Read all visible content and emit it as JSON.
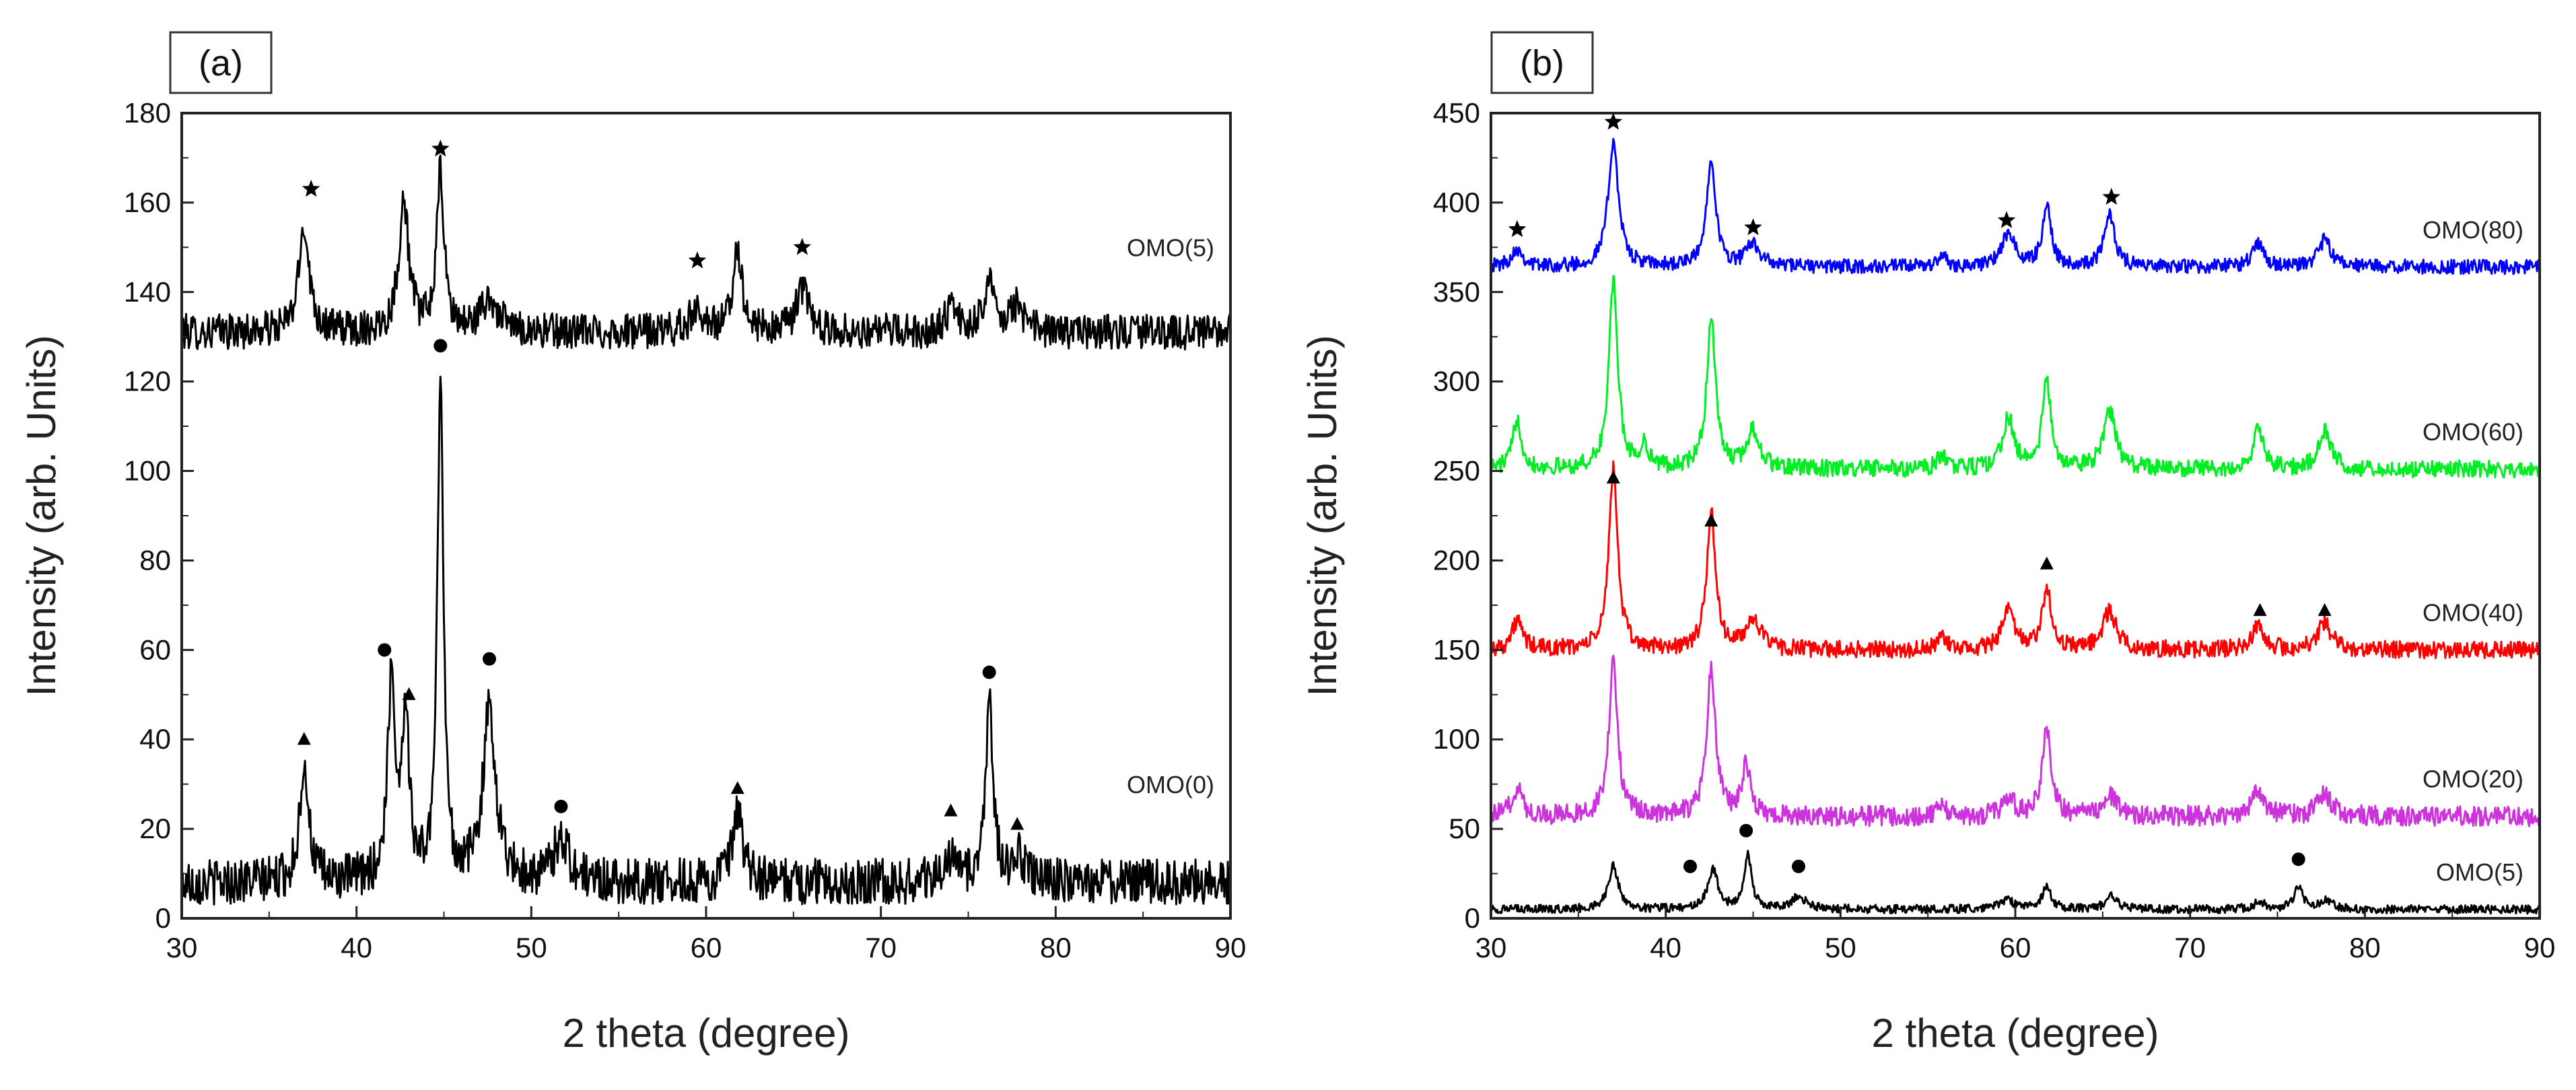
{
  "chart_data": [
    {
      "panel": "(a)",
      "type": "line",
      "xlabel": "2 theta (degree)",
      "ylabel": "Intensity (arb. Units)",
      "xlim": [
        30,
        90
      ],
      "ylim": [
        0,
        180
      ],
      "xticks": [
        30,
        40,
        50,
        60,
        70,
        80,
        90
      ],
      "yticks": [
        0,
        20,
        40,
        60,
        80,
        100,
        120,
        140,
        160,
        180
      ],
      "series": [
        {
          "name": "OMO(5)",
          "color": "#000000",
          "baseline": 131,
          "noise": 2.5,
          "peaks": [
            [
              37.0,
              24,
              0.35
            ],
            [
              42.7,
              29,
              0.35
            ],
            [
              44.8,
              35,
              0.25
            ],
            [
              47.6,
              7,
              0.6
            ],
            [
              59.5,
              5,
              0.5
            ],
            [
              61.8,
              19,
              0.3
            ],
            [
              65.5,
              10,
              0.4
            ],
            [
              74.0,
              5,
              0.4
            ],
            [
              76.2,
              14,
              0.3
            ],
            [
              77.8,
              6,
              0.4
            ]
          ]
        },
        {
          "name": "OMO(0)",
          "color": "#000000",
          "baseline": 8,
          "noise": 3.2,
          "peaks": [
            [
              37.0,
              27,
              0.3
            ],
            [
              42.0,
              45,
              0.25
            ],
            [
              42.8,
              37,
              0.25
            ],
            [
              44.8,
              115,
              0.2
            ],
            [
              47.6,
              38,
              0.45
            ],
            [
              51.7,
              10,
              0.5
            ],
            [
              61.8,
              15,
              0.35
            ],
            [
              74.0,
              6,
              0.4
            ],
            [
              76.2,
              40,
              0.25
            ],
            [
              77.8,
              6,
              0.4
            ]
          ]
        }
      ],
      "annotations": [
        {
          "symbol": "star",
          "x": 37.4,
          "y": 163
        },
        {
          "symbol": "star",
          "x": 44.8,
          "y": 172
        },
        {
          "symbol": "star",
          "x": 59.5,
          "y": 147
        },
        {
          "symbol": "star",
          "x": 65.5,
          "y": 150
        },
        {
          "symbol": "circle",
          "x": 44.8,
          "y": 128
        },
        {
          "symbol": "circle",
          "x": 41.6,
          "y": 60
        },
        {
          "symbol": "circle",
          "x": 47.6,
          "y": 58
        },
        {
          "symbol": "circle",
          "x": 51.7,
          "y": 25
        },
        {
          "symbol": "circle",
          "x": 76.2,
          "y": 55
        },
        {
          "symbol": "triangle",
          "x": 37.0,
          "y": 40
        },
        {
          "symbol": "triangle",
          "x": 43.0,
          "y": 50
        },
        {
          "symbol": "triangle",
          "x": 61.8,
          "y": 29
        },
        {
          "symbol": "triangle",
          "x": 74.0,
          "y": 24
        },
        {
          "symbol": "triangle",
          "x": 77.8,
          "y": 21
        }
      ]
    },
    {
      "panel": "(b)",
      "type": "line",
      "xlabel": "2 theta (degree)",
      "ylabel": "Intensity (arb. Units)",
      "xlim": [
        30,
        90
      ],
      "ylim": [
        0,
        450
      ],
      "xticks": [
        30,
        40,
        50,
        60,
        70,
        80,
        90
      ],
      "yticks": [
        0,
        50,
        100,
        150,
        200,
        250,
        300,
        350,
        400,
        450
      ],
      "series": [
        {
          "name": "OMO(80)",
          "color": "#0000ff",
          "baseline": 364,
          "noise": 2.5,
          "peaks": [
            [
              31.5,
              10,
              0.4
            ],
            [
              37.0,
              70,
              0.35
            ],
            [
              42.6,
              62,
              0.3
            ],
            [
              45.0,
              13,
              0.45
            ],
            [
              55.8,
              6,
              0.3
            ],
            [
              59.6,
              18,
              0.45
            ],
            [
              61.8,
              34,
              0.3
            ],
            [
              65.4,
              30,
              0.35
            ],
            [
              73.9,
              14,
              0.35
            ],
            [
              77.7,
              15,
              0.4
            ]
          ]
        },
        {
          "name": "OMO(60)",
          "color": "#00ee22",
          "baseline": 251,
          "noise": 3,
          "peaks": [
            [
              31.5,
              28,
              0.3
            ],
            [
              37.0,
              105,
              0.3
            ],
            [
              38.8,
              12,
              0.3
            ],
            [
              42.6,
              85,
              0.3
            ],
            [
              45.0,
              22,
              0.4
            ],
            [
              55.8,
              8,
              0.3
            ],
            [
              59.6,
              28,
              0.4
            ],
            [
              61.8,
              48,
              0.3
            ],
            [
              65.4,
              33,
              0.4
            ],
            [
              73.9,
              22,
              0.35
            ],
            [
              77.7,
              22,
              0.4
            ]
          ]
        },
        {
          "name": "OMO(40)",
          "color": "#ff0000",
          "baseline": 150,
          "noise": 3,
          "peaks": [
            [
              31.5,
              16,
              0.35
            ],
            [
              37.0,
              102,
              0.3
            ],
            [
              42.6,
              77,
              0.3
            ],
            [
              45.0,
              18,
              0.45
            ],
            [
              55.8,
              7,
              0.3
            ],
            [
              59.6,
              22,
              0.4
            ],
            [
              61.8,
              35,
              0.3
            ],
            [
              65.4,
              22,
              0.45
            ],
            [
              73.9,
              14,
              0.4
            ],
            [
              77.7,
              15,
              0.45
            ]
          ]
        },
        {
          "name": "OMO(20)",
          "color": "#cc33dd",
          "baseline": 57,
          "noise": 3.5,
          "peaks": [
            [
              31.5,
              16,
              0.35
            ],
            [
              37.0,
              85,
              0.3
            ],
            [
              42.6,
              82,
              0.3
            ],
            [
              44.6,
              28,
              0.3
            ],
            [
              55.8,
              5,
              0.3
            ],
            [
              59.6,
              10,
              0.4
            ],
            [
              61.8,
              48,
              0.3
            ],
            [
              65.4,
              12,
              0.45
            ],
            [
              73.9,
              14,
              0.4
            ],
            [
              77.7,
              13,
              0.45
            ]
          ]
        },
        {
          "name": "OMO(5)",
          "color": "#000000",
          "baseline": 5,
          "noise": 1.5,
          "peaks": [
            [
              37.0,
              24,
              0.35
            ],
            [
              42.7,
              22,
              0.35
            ],
            [
              44.7,
              30,
              0.25
            ],
            [
              47.6,
              7,
              0.5
            ],
            [
              59.5,
              5,
              0.5
            ],
            [
              61.8,
              13,
              0.3
            ],
            [
              65.5,
              7,
              0.4
            ],
            [
              74.0,
              4,
              0.4
            ],
            [
              76.2,
              12,
              0.3
            ],
            [
              77.8,
              5,
              0.4
            ]
          ]
        }
      ],
      "annotations": [
        {
          "symbol": "star",
          "x": 31.5,
          "y": 385
        },
        {
          "symbol": "star",
          "x": 37.0,
          "y": 445
        },
        {
          "symbol": "star",
          "x": 45.0,
          "y": 386
        },
        {
          "symbol": "star",
          "x": 59.5,
          "y": 390
        },
        {
          "symbol": "star",
          "x": 65.5,
          "y": 403
        },
        {
          "symbol": "triangle",
          "x": 37.0,
          "y": 246
        },
        {
          "symbol": "triangle",
          "x": 42.6,
          "y": 222
        },
        {
          "symbol": "triangle",
          "x": 61.8,
          "y": 198
        },
        {
          "symbol": "triangle",
          "x": 74.0,
          "y": 172
        },
        {
          "symbol": "triangle",
          "x": 77.7,
          "y": 172
        },
        {
          "symbol": "circle",
          "x": 41.4,
          "y": 29
        },
        {
          "symbol": "circle",
          "x": 44.6,
          "y": 49
        },
        {
          "symbol": "circle",
          "x": 47.6,
          "y": 29
        },
        {
          "symbol": "circle",
          "x": 76.2,
          "y": 33
        }
      ]
    }
  ]
}
